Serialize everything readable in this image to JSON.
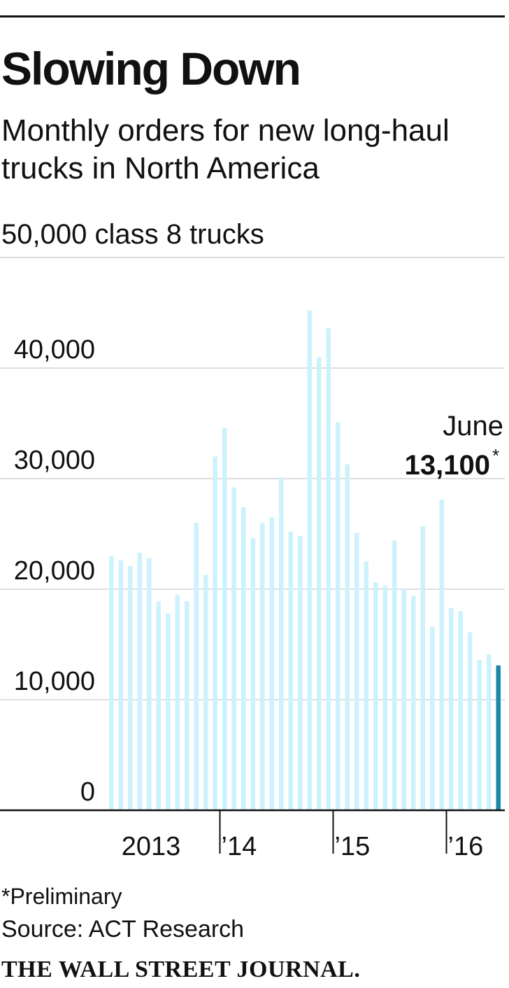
{
  "header": {
    "title": "Slowing Down",
    "subtitle": "Monthly orders for new long-haul trucks in North America",
    "units": "50,000 class 8 trucks"
  },
  "footer": {
    "footnote_mark": "*",
    "footnote_text": "Preliminary",
    "source": "Source: ACT Research",
    "publisher": "THE WALL STREET JOURNAL."
  },
  "colors": {
    "bar": "#ccf2fc",
    "highlight": "#1a88aa",
    "grid": "#d4d4d4",
    "axis": "#111111",
    "text": "#111111"
  },
  "chart_data": {
    "type": "bar",
    "title": "Slowing Down",
    "subtitle": "Monthly orders for new long-haul trucks in North America",
    "ylabel": "50,000 class 8 trucks",
    "ylim": [
      0,
      50000
    ],
    "yticks": [
      0,
      10000,
      20000,
      30000,
      40000
    ],
    "ytick_labels": [
      "0",
      "10,000",
      "20,000",
      "30,000",
      "40,000"
    ],
    "grid": true,
    "xtick_labels": [
      {
        "label": "2013",
        "after_index": null
      },
      {
        "label": "’14",
        "after_index": 11
      },
      {
        "label": "’15",
        "after_index": 23
      },
      {
        "label": "’16",
        "after_index": 35
      }
    ],
    "categories": [
      "Jan 2013",
      "Feb 2013",
      "Mar 2013",
      "Apr 2013",
      "May 2013",
      "Jun 2013",
      "Jul 2013",
      "Aug 2013",
      "Sep 2013",
      "Oct 2013",
      "Nov 2013",
      "Dec 2013",
      "Jan 2014",
      "Feb 2014",
      "Mar 2014",
      "Apr 2014",
      "May 2014",
      "Jun 2014",
      "Jul 2014",
      "Aug 2014",
      "Sep 2014",
      "Oct 2014",
      "Nov 2014",
      "Dec 2014",
      "Jan 2015",
      "Feb 2015",
      "Mar 2015",
      "Apr 2015",
      "May 2015",
      "Jun 2015",
      "Jul 2015",
      "Aug 2015",
      "Sep 2015",
      "Oct 2015",
      "Nov 2015",
      "Dec 2015",
      "Jan 2016",
      "Feb 2016",
      "Mar 2016",
      "Apr 2016",
      "May 2016",
      "Jun 2016"
    ],
    "values": [
      23000,
      22600,
      22100,
      23300,
      22800,
      18900,
      17800,
      19500,
      18900,
      26000,
      21300,
      32000,
      34600,
      29200,
      27400,
      24600,
      26000,
      26500,
      30100,
      25200,
      24800,
      45200,
      41000,
      43600,
      35100,
      31300,
      25100,
      22500,
      20600,
      20300,
      24400,
      20000,
      19400,
      25700,
      16600,
      28100,
      18300,
      18000,
      16100,
      13600,
      14100,
      13100
    ],
    "highlight_index": 41,
    "annotation": {
      "month": "June",
      "value": "13,100",
      "mark": "*"
    }
  }
}
